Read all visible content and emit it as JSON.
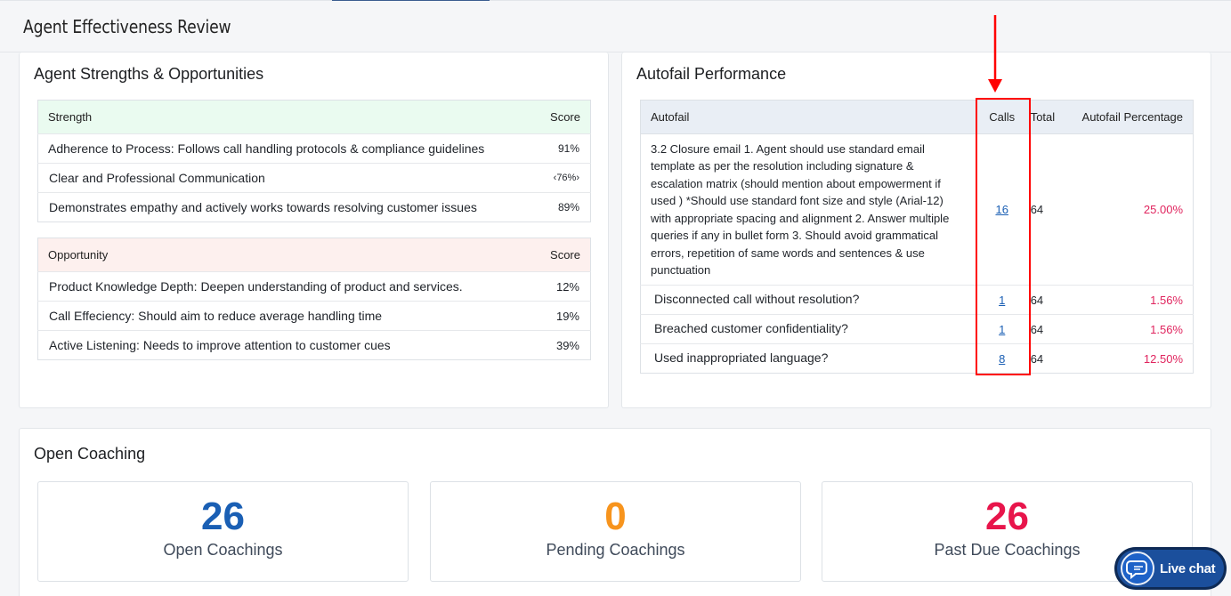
{
  "page": {
    "title": "Agent Effectiveness Review"
  },
  "strengths_card": {
    "title": "Agent Strengths & Opportunities",
    "strength_header": {
      "label": "Strength",
      "score_label": "Score"
    },
    "strengths": [
      {
        "label": "Adherence to Process: Follows call handling protocols & compliance guidelines",
        "score": "91%"
      },
      {
        "label": "Clear and Professional Communication",
        "score": "‹76%›"
      },
      {
        "label": "Demonstrates empathy and actively works towards resolving customer issues",
        "score": "89%"
      }
    ],
    "opportunity_header": {
      "label": "Opportunity",
      "score_label": "Score"
    },
    "opportunities": [
      {
        "label": "Product Knowledge Depth: Deepen understanding of product and services.",
        "score": "12%"
      },
      {
        "label": "Call Effeciency: Should aim to reduce average handling time",
        "score": "19%"
      },
      {
        "label": "Active Listening: Needs to improve attention to customer cues",
        "score": "39%"
      }
    ]
  },
  "autofail_card": {
    "title": "Autofail Performance",
    "columns": [
      "Autofail",
      "Calls",
      "Total",
      "Autofail Percentage"
    ],
    "rows": [
      {
        "autofail": "3.2 Closure email 1. Agent should use standard email template as per the resolution including signature & escalation matrix (should mention about empowerment if used ) *Should use standard font size and style (Arial-12) with appropriate spacing and alignment 2. Answer multiple queries if any in bullet form 3. Should avoid grammatical errors, repetition of same words and sentences & use punctuation",
        "calls": "16",
        "total": "64",
        "percentage": "25.00%"
      },
      {
        "autofail": "Disconnected call without resolution?",
        "calls": "1",
        "total": "64",
        "percentage": "1.56%"
      },
      {
        "autofail": "Breached customer confidentiality?",
        "calls": "1",
        "total": "64",
        "percentage": "1.56%"
      },
      {
        "autofail": "Used inappropriated language?",
        "calls": "8",
        "total": "64",
        "percentage": "12.50%"
      }
    ]
  },
  "coaching_card": {
    "title": "Open Coaching",
    "stats": [
      {
        "value": "26",
        "label": "Open Coachings",
        "color": "#1a5fb4"
      },
      {
        "value": "0",
        "label": "Pending Coachings",
        "color": "#f7941d"
      },
      {
        "value": "26",
        "label": "Past Due Coachings",
        "color": "#e8154b"
      }
    ]
  },
  "live_chat": {
    "label": "Live chat"
  },
  "colors": {
    "strength_score": "#43b649",
    "opportunity_score": "#e0327a",
    "percentage": "#e0245e",
    "annotation": "#ff0000"
  }
}
